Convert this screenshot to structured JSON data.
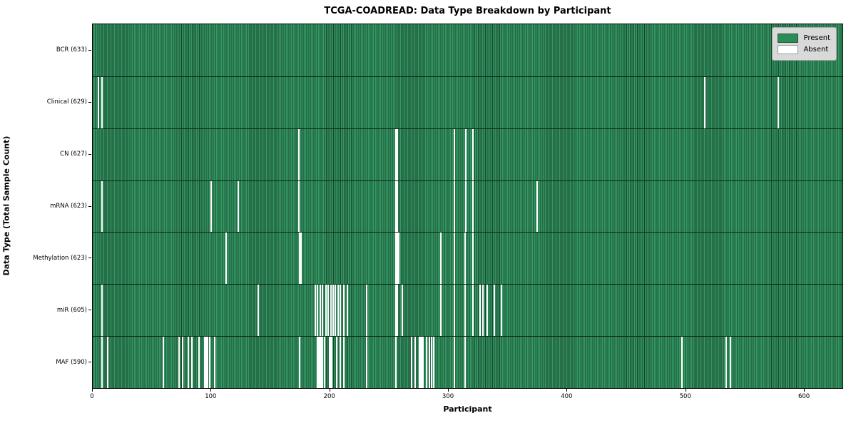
{
  "chart_data": {
    "type": "heatmap",
    "title": "TCGA-COADREAD: Data Type Breakdown by Participant",
    "xlabel": "Participant",
    "ylabel": "Data Type (Total Sample Count)",
    "x_ticks": [
      0,
      100,
      200,
      300,
      400,
      500,
      600
    ],
    "x_max": 633,
    "grid": false,
    "legend": {
      "position": "upper right",
      "entries": [
        {
          "label": "Present",
          "color": "#2e8b57"
        },
        {
          "label": "Absent",
          "color": "#ffffff"
        }
      ]
    },
    "colors": {
      "present_fill": "#349964",
      "bar_edge": "#17452b",
      "absent": "#ffffff",
      "row_separator": "#0d2618"
    },
    "rows": [
      {
        "label": "BCR (633)",
        "name": "BCR",
        "total": 633,
        "absent": []
      },
      {
        "label": "Clinical (629)",
        "name": "Clinical",
        "total": 629,
        "absent": [
          4,
          7,
          515,
          577
        ]
      },
      {
        "label": "CN (627)",
        "name": "CN",
        "total": 627,
        "absent": [
          173,
          255,
          256,
          304,
          314,
          320
        ]
      },
      {
        "label": "mRNA (623)",
        "name": "mRNA",
        "total": 623,
        "absent": [
          7,
          99,
          122,
          173,
          255,
          256,
          304,
          314,
          320,
          374
        ]
      },
      {
        "label": "Methylation (623)",
        "name": "Methylation",
        "total": 623,
        "absent": [
          112,
          174,
          175,
          255,
          256,
          257,
          293,
          304,
          313,
          320
        ]
      },
      {
        "label": "miR (605)",
        "name": "miR",
        "total": 605,
        "absent": [
          7,
          139,
          187,
          189,
          191,
          193,
          196,
          198,
          200,
          202,
          204,
          206,
          208,
          211,
          214,
          230,
          255,
          256,
          260,
          293,
          304,
          313,
          320,
          326,
          328,
          332,
          338,
          344
        ]
      },
      {
        "label": "MAF (590)",
        "name": "MAF",
        "total": 590,
        "absent": [
          7,
          12,
          59,
          72,
          75,
          80,
          83,
          89,
          94,
          95,
          96,
          98,
          102,
          174,
          189,
          190,
          191,
          192,
          193,
          195,
          199,
          200,
          201,
          205,
          208,
          211,
          230,
          255,
          268,
          271,
          275,
          276,
          277,
          278,
          281,
          283,
          285,
          287,
          304,
          313,
          496,
          533,
          537
        ]
      }
    ]
  }
}
